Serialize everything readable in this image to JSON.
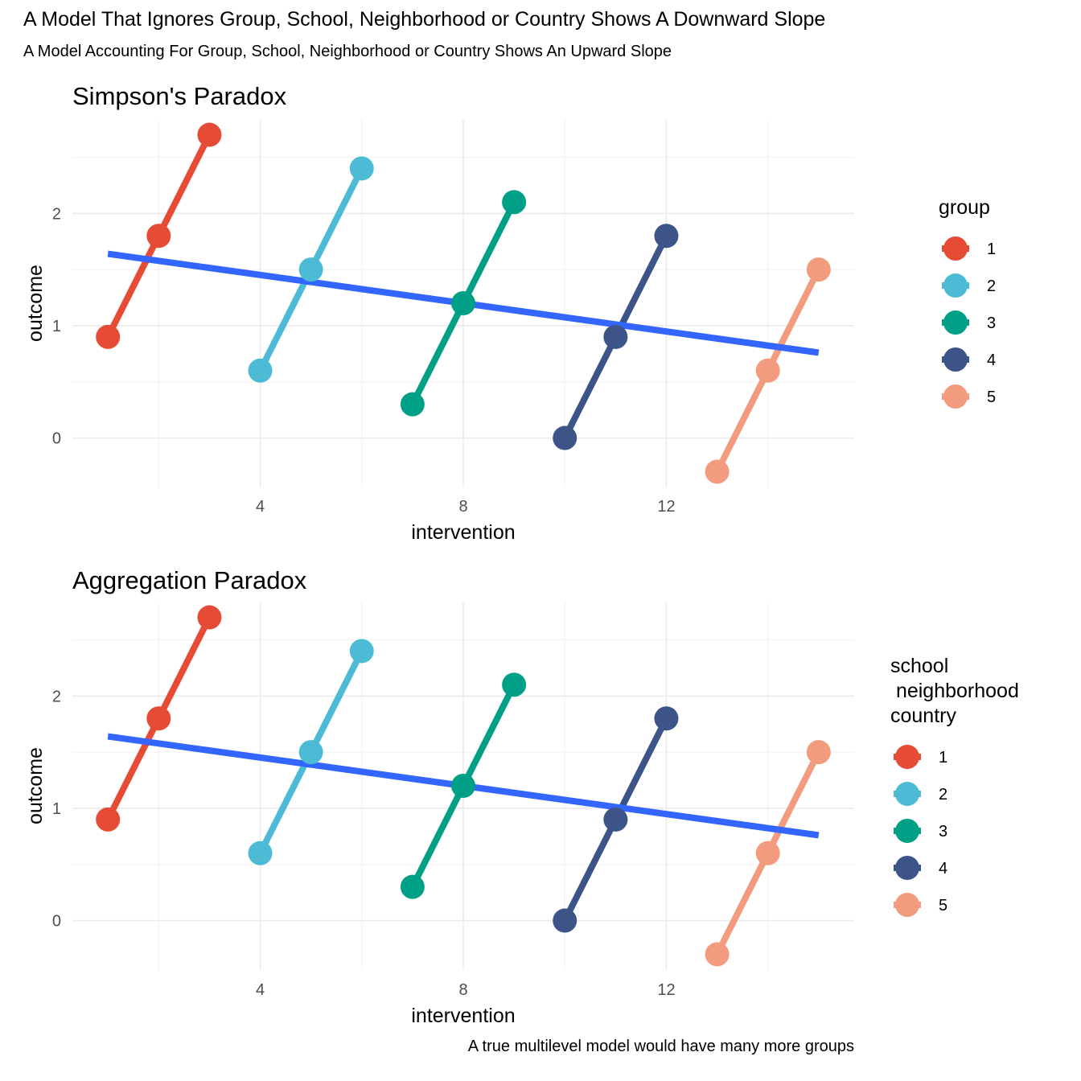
{
  "title": "A Model That Ignores Group, School, Neighborhood or Country Shows A Downward Slope",
  "subtitle": "A Model Accounting For Group, School, Neighborhood or Country Shows An Upward Slope",
  "caption": "A true multilevel model would have many more groups",
  "colors": {
    "group_1": "#E64B35",
    "group_2": "#4DBBD5",
    "group_3": "#00A087",
    "group_4": "#3C5488",
    "group_5": "#F39B7F",
    "overall_fit": "#3366FF"
  },
  "chart_data": [
    {
      "type": "line",
      "title": "Simpson's Paradox",
      "xlabel": "intervention",
      "ylabel": "outcome",
      "x_ticks": [
        4,
        8,
        12
      ],
      "y_ticks": [
        0,
        1,
        2
      ],
      "xlim": [
        0.3,
        15.7
      ],
      "ylim": [
        -0.44,
        2.84
      ],
      "grid": true,
      "legend": {
        "title": "group",
        "position": "right",
        "entries": [
          "1",
          "2",
          "3",
          "4",
          "5"
        ]
      },
      "series": [
        {
          "name": "1",
          "x": [
            1,
            2,
            3
          ],
          "y": [
            0.9,
            1.8,
            2.7
          ]
        },
        {
          "name": "2",
          "x": [
            4,
            5,
            6
          ],
          "y": [
            0.6,
            1.5,
            2.4
          ]
        },
        {
          "name": "3",
          "x": [
            7,
            8,
            9
          ],
          "y": [
            0.3,
            1.2,
            2.1
          ]
        },
        {
          "name": "4",
          "x": [
            10,
            11,
            12
          ],
          "y": [
            0.0,
            0.9,
            1.8
          ]
        },
        {
          "name": "5",
          "x": [
            13,
            14,
            15
          ],
          "y": [
            -0.3,
            0.6,
            1.5
          ]
        }
      ],
      "overall_fit": {
        "x": [
          1,
          15
        ],
        "y": [
          1.64,
          0.76
        ]
      }
    },
    {
      "type": "line",
      "title": "Aggregation Paradox",
      "xlabel": "intervention",
      "ylabel": "outcome",
      "x_ticks": [
        4,
        8,
        12
      ],
      "y_ticks": [
        0,
        1,
        2
      ],
      "xlim": [
        0.3,
        15.7
      ],
      "ylim": [
        -0.44,
        2.84
      ],
      "grid": true,
      "legend": {
        "title": "school\n neighborhood\ncountry",
        "position": "right",
        "entries": [
          "1",
          "2",
          "3",
          "4",
          "5"
        ]
      },
      "series": [
        {
          "name": "1",
          "x": [
            1,
            2,
            3
          ],
          "y": [
            0.9,
            1.8,
            2.7
          ]
        },
        {
          "name": "2",
          "x": [
            4,
            5,
            6
          ],
          "y": [
            0.6,
            1.5,
            2.4
          ]
        },
        {
          "name": "3",
          "x": [
            7,
            8,
            9
          ],
          "y": [
            0.3,
            1.2,
            2.1
          ]
        },
        {
          "name": "4",
          "x": [
            10,
            11,
            12
          ],
          "y": [
            0.0,
            0.9,
            1.8
          ]
        },
        {
          "name": "5",
          "x": [
            13,
            14,
            15
          ],
          "y": [
            -0.3,
            0.6,
            1.5
          ]
        }
      ],
      "overall_fit": {
        "x": [
          1,
          15
        ],
        "y": [
          1.64,
          0.76
        ]
      }
    }
  ]
}
